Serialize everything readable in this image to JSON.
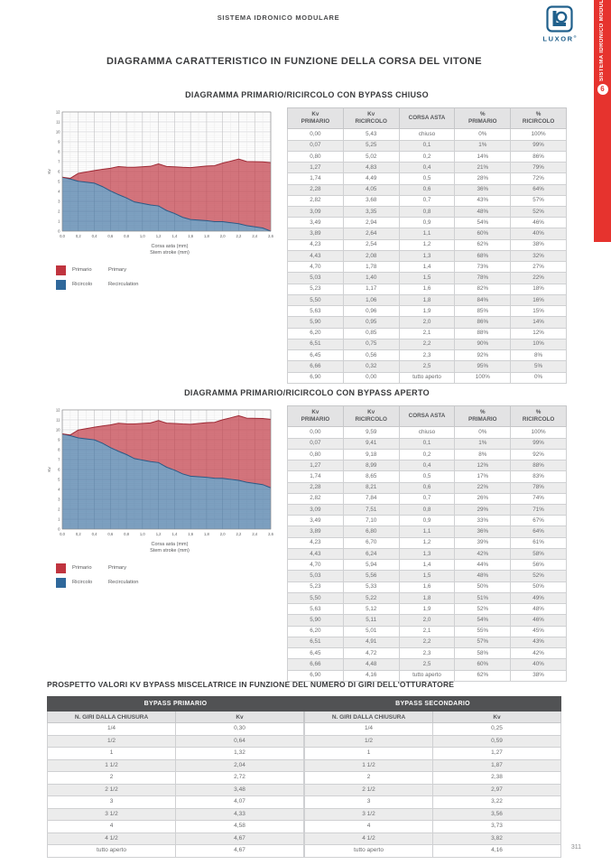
{
  "page": {
    "header_title": "SISTEMA IDRONICO MODULARE",
    "page_number": "311"
  },
  "brand": {
    "name": "LUXOR",
    "registered": "®",
    "logo_color": "#20608c"
  },
  "side_tab": {
    "number": "6",
    "label": "SISTEMA IDRONICO MODULARE",
    "bg": "#e6332e"
  },
  "main_title": "DIAGRAMMA CARATTERISTICO IN FUNZIONE DELLA CORSA DEL VITONE",
  "sections": {
    "closed": {
      "title": "DIAGRAMMA PRIMARIO/RICIRCOLO CON BYPASS CHIUSO"
    },
    "open": {
      "title": "DIAGRAMMA PRIMARIO/RICIRCOLO CON BYPASS APERTO"
    },
    "prospetto": {
      "title": "PROSPETTO VALORI KV BYPASS MISCELATRICE IN FUNZIONE DEL NUMERO DI GIRI DELL'OTTURATORE"
    }
  },
  "legend": [
    {
      "label_it": "Primario",
      "label_en": "Primary",
      "color": "#c0343f"
    },
    {
      "label_it": "Ricircolo",
      "label_en": "Recirculation",
      "color": "#2f689b"
    }
  ],
  "chart_data": [
    {
      "type": "area",
      "stacked": true,
      "title": "DIAGRAMMA PRIMARIO/RICIRCOLO CON BYPASS CHIUSO",
      "x": [
        0,
        0.1,
        0.2,
        0.4,
        0.5,
        0.6,
        0.7,
        0.8,
        0.9,
        1.1,
        1.2,
        1.3,
        1.4,
        1.5,
        1.6,
        1.8,
        1.9,
        2.0,
        2.1,
        2.2,
        2.3,
        2.5,
        2.6
      ],
      "series": [
        {
          "name": "Primario / Primary",
          "values": [
            0.0,
            0.07,
            0.8,
            1.27,
            1.74,
            2.28,
            2.82,
            3.09,
            3.49,
            3.89,
            4.23,
            4.43,
            4.7,
            5.03,
            5.23,
            5.5,
            5.63,
            5.9,
            6.2,
            6.51,
            6.45,
            6.66,
            6.9
          ]
        },
        {
          "name": "Ricircolo / Recirculation",
          "values": [
            5.43,
            5.25,
            5.02,
            4.83,
            4.49,
            4.05,
            3.68,
            3.35,
            2.94,
            2.64,
            2.54,
            2.08,
            1.78,
            1.4,
            1.17,
            1.06,
            0.96,
            0.95,
            0.85,
            0.75,
            0.56,
            0.32,
            0.0
          ]
        }
      ],
      "xlabel": "Corsa asta (mm) / Stem stroke (mm)",
      "xlabel_lines": [
        "Corsa asta (mm)",
        "Stem stroke (mm)"
      ],
      "ylabel": "Kv",
      "xlim": [
        0,
        2.6
      ],
      "ylim": [
        0,
        12
      ],
      "xtick_step": 0.2,
      "ytick_step": 1,
      "grid": true,
      "legend_position": "bottom-left"
    },
    {
      "type": "area",
      "stacked": true,
      "title": "DIAGRAMMA PRIMARIO/RICIRCOLO CON BYPASS APERTO",
      "x": [
        0,
        0.1,
        0.2,
        0.4,
        0.5,
        0.6,
        0.7,
        0.8,
        0.9,
        1.1,
        1.2,
        1.3,
        1.4,
        1.5,
        1.6,
        1.8,
        1.9,
        2.0,
        2.1,
        2.2,
        2.3,
        2.5,
        2.6
      ],
      "series": [
        {
          "name": "Primario / Primary",
          "values": [
            0.0,
            0.07,
            0.8,
            1.27,
            1.74,
            2.28,
            2.82,
            3.09,
            3.49,
            3.89,
            4.23,
            4.43,
            4.7,
            5.03,
            5.23,
            5.5,
            5.63,
            5.9,
            6.2,
            6.51,
            6.45,
            6.66,
            6.9
          ]
        },
        {
          "name": "Ricircolo / Recirculation",
          "values": [
            9.59,
            9.41,
            9.18,
            8.99,
            8.65,
            8.21,
            7.84,
            7.51,
            7.1,
            6.8,
            6.7,
            6.24,
            5.94,
            5.56,
            5.33,
            5.22,
            5.12,
            5.11,
            5.01,
            4.91,
            4.72,
            4.48,
            4.16
          ]
        }
      ],
      "xlabel": "Corsa asta (mm) / Stem stroke (mm)",
      "xlabel_lines": [
        "Corsa asta (mm)",
        "Stem stroke (mm)"
      ],
      "ylabel": "Kv",
      "xlim": [
        0,
        2.6
      ],
      "ylim": [
        0,
        12
      ],
      "xtick_step": 0.2,
      "ytick_step": 1,
      "grid": true,
      "legend_position": "bottom-left"
    }
  ],
  "kv_columns": [
    "Kv\nPRIMARIO",
    "Kv\nRICIRCOLO",
    "CORSA ASTA",
    "%\nPRIMARIO",
    "%\nRICIRCOLO"
  ],
  "kv_tables": {
    "closed_rows": [
      [
        "0,00",
        "5,43",
        "chiuso",
        "0%",
        "100%"
      ],
      [
        "0,07",
        "5,25",
        "0,1",
        "1%",
        "99%"
      ],
      [
        "0,80",
        "5,02",
        "0,2",
        "14%",
        "86%"
      ],
      [
        "1,27",
        "4,83",
        "0,4",
        "21%",
        "79%"
      ],
      [
        "1,74",
        "4,49",
        "0,5",
        "28%",
        "72%"
      ],
      [
        "2,28",
        "4,05",
        "0,6",
        "36%",
        "64%"
      ],
      [
        "2,82",
        "3,68",
        "0,7",
        "43%",
        "57%"
      ],
      [
        "3,09",
        "3,35",
        "0,8",
        "48%",
        "52%"
      ],
      [
        "3,49",
        "2,94",
        "0,9",
        "54%",
        "46%"
      ],
      [
        "3,89",
        "2,64",
        "1,1",
        "60%",
        "40%"
      ],
      [
        "4,23",
        "2,54",
        "1,2",
        "62%",
        "38%"
      ],
      [
        "4,43",
        "2,08",
        "1,3",
        "68%",
        "32%"
      ],
      [
        "4,70",
        "1,78",
        "1,4",
        "73%",
        "27%"
      ],
      [
        "5,03",
        "1,40",
        "1,5",
        "78%",
        "22%"
      ],
      [
        "5,23",
        "1,17",
        "1,6",
        "82%",
        "18%"
      ],
      [
        "5,50",
        "1,06",
        "1,8",
        "84%",
        "16%"
      ],
      [
        "5,63",
        "0,96",
        "1,9",
        "85%",
        "15%"
      ],
      [
        "5,90",
        "0,95",
        "2,0",
        "86%",
        "14%"
      ],
      [
        "6,20",
        "0,85",
        "2,1",
        "88%",
        "12%"
      ],
      [
        "6,51",
        "0,75",
        "2,2",
        "90%",
        "10%"
      ],
      [
        "6,45",
        "0,56",
        "2,3",
        "92%",
        "8%"
      ],
      [
        "6,66",
        "0,32",
        "2,5",
        "95%",
        "5%"
      ],
      [
        "6,90",
        "0,00",
        "tutto aperto",
        "100%",
        "0%"
      ]
    ],
    "open_rows": [
      [
        "0,00",
        "9,59",
        "chiuso",
        "0%",
        "100%"
      ],
      [
        "0,07",
        "9,41",
        "0,1",
        "1%",
        "99%"
      ],
      [
        "0,80",
        "9,18",
        "0,2",
        "8%",
        "92%"
      ],
      [
        "1,27",
        "8,99",
        "0,4",
        "12%",
        "88%"
      ],
      [
        "1,74",
        "8,65",
        "0,5",
        "17%",
        "83%"
      ],
      [
        "2,28",
        "8,21",
        "0,6",
        "22%",
        "78%"
      ],
      [
        "2,82",
        "7,84",
        "0,7",
        "26%",
        "74%"
      ],
      [
        "3,09",
        "7,51",
        "0,8",
        "29%",
        "71%"
      ],
      [
        "3,49",
        "7,10",
        "0,9",
        "33%",
        "67%"
      ],
      [
        "3,89",
        "6,80",
        "1,1",
        "36%",
        "64%"
      ],
      [
        "4,23",
        "6,70",
        "1,2",
        "39%",
        "61%"
      ],
      [
        "4,43",
        "6,24",
        "1,3",
        "42%",
        "58%"
      ],
      [
        "4,70",
        "5,94",
        "1,4",
        "44%",
        "56%"
      ],
      [
        "5,03",
        "5,56",
        "1,5",
        "48%",
        "52%"
      ],
      [
        "5,23",
        "5,33",
        "1,6",
        "50%",
        "50%"
      ],
      [
        "5,50",
        "5,22",
        "1,8",
        "51%",
        "49%"
      ],
      [
        "5,63",
        "5,12",
        "1,9",
        "52%",
        "48%"
      ],
      [
        "5,90",
        "5,11",
        "2,0",
        "54%",
        "46%"
      ],
      [
        "6,20",
        "5,01",
        "2,1",
        "55%",
        "45%"
      ],
      [
        "6,51",
        "4,91",
        "2,2",
        "57%",
        "43%"
      ],
      [
        "6,45",
        "4,72",
        "2,3",
        "58%",
        "42%"
      ],
      [
        "6,66",
        "4,48",
        "2,5",
        "60%",
        "40%"
      ],
      [
        "6,90",
        "4,16",
        "tutto aperto",
        "62%",
        "38%"
      ]
    ]
  },
  "bypass_tables": {
    "primario": {
      "title": "BYPASS PRIMARIO",
      "col1": "N. GIRI DALLA CHIUSURA",
      "col2": "Kv",
      "rows": [
        [
          "1/4",
          "0,30"
        ],
        [
          "1/2",
          "0,64"
        ],
        [
          "1",
          "1,32"
        ],
        [
          "1 1/2",
          "2,04"
        ],
        [
          "2",
          "2,72"
        ],
        [
          "2 1/2",
          "3,48"
        ],
        [
          "3",
          "4,07"
        ],
        [
          "3 1/2",
          "4,33"
        ],
        [
          "4",
          "4,58"
        ],
        [
          "4 1/2",
          "4,67"
        ],
        [
          "tutto aperto",
          "4,67"
        ]
      ]
    },
    "secondario": {
      "title": "BYPASS SECONDARIO",
      "col1": "N. GIRI DALLA CHIUSURA",
      "col2": "Kv",
      "rows": [
        [
          "1/4",
          "0,25"
        ],
        [
          "1/2",
          "0,59"
        ],
        [
          "1",
          "1,27"
        ],
        [
          "1 1/2",
          "1,87"
        ],
        [
          "2",
          "2,38"
        ],
        [
          "2 1/2",
          "2,97"
        ],
        [
          "3",
          "3,22"
        ],
        [
          "3 1/2",
          "3,56"
        ],
        [
          "4",
          "3,73"
        ],
        [
          "4 1/2",
          "3,82"
        ],
        [
          "tutto aperto",
          "4,16"
        ]
      ]
    }
  },
  "chart_colors": {
    "primario_fill": "#c0343f",
    "ricircolo_fill": "#2f689b",
    "primario_line": "#9e2a35",
    "ricircolo_line": "#2b5a86"
  }
}
